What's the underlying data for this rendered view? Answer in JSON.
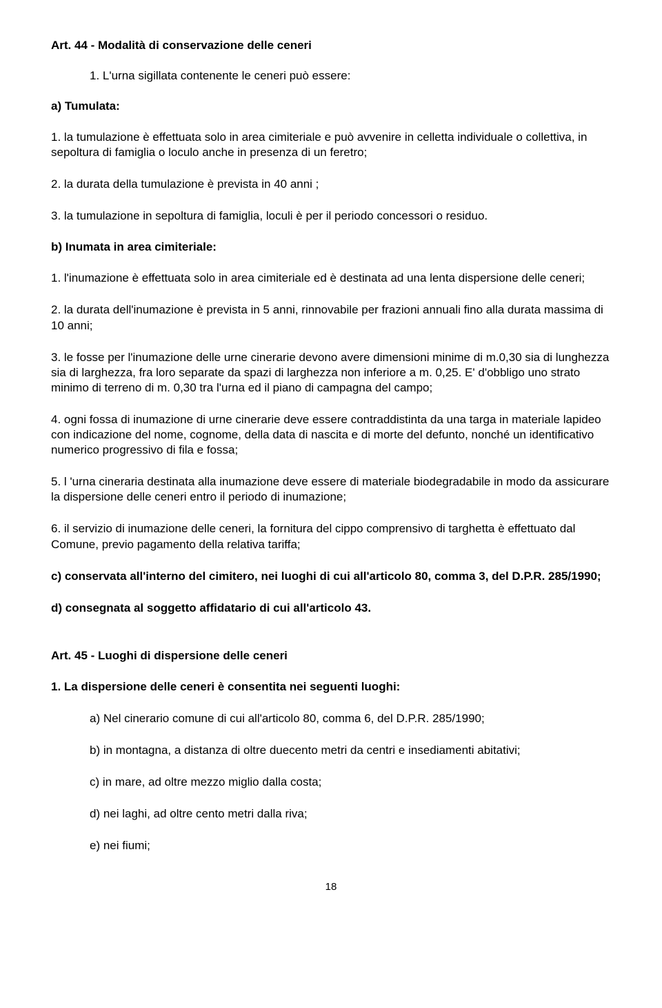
{
  "art44": {
    "title": "Art. 44 - Modalità di conservazione delle ceneri",
    "intro": "1. L'urna sigillata contenente le ceneri può essere:",
    "a_label": "a) Tumulata:",
    "a_items": [
      "1. la tumulazione è effettuata solo in area cimiteriale e può avvenire in celletta individuale o collettiva, in sepoltura di famiglia o loculo anche in presenza di un feretro;",
      "2. la durata della tumulazione è prevista in 40 anni ;",
      "3. la tumulazione in sepoltura di famiglia, loculi è per il periodo concessori o residuo."
    ],
    "b_label": "b) Inumata in area cimiteriale:",
    "b_items": [
      "1. l'inumazione è effettuata solo in area cimiteriale ed è destinata ad una lenta dispersione delle ceneri;",
      "2. la durata dell'inumazione è prevista in 5 anni, rinnovabile per frazioni annuali fino alla durata massima di 10 anni;",
      "3. le fosse per l'inumazione delle urne cinerarie devono avere dimensioni minime di m.0,30 sia di lunghezza sia di larghezza, fra loro separate da spazi di larghezza non inferiore a m. 0,25. E' d'obbligo uno strato minimo di terreno di m. 0,30 tra l'urna ed il piano di campagna del campo;",
      "4. ogni fossa di inumazione di urne cinerarie deve essere contraddistinta da una targa in materiale lapideo con indicazione del nome, cognome, della data di nascita e di morte del defunto, nonché un identificativo numerico progressivo di fila e fossa;",
      "5. l 'urna cineraria destinata alla inumazione deve essere di materiale biodegradabile in modo da assicurare la dispersione delle ceneri entro il periodo di inumazione;",
      "6. il servizio di inumazione delle ceneri, la fornitura del cippo comprensivo di targhetta è effettuato dal Comune, previo pagamento della relativa tariffa;"
    ],
    "c_text": "c) conservata all'interno del cimitero, nei luoghi di cui all'articolo 80, comma 3, del D.P.R. 285/1990;",
    "d_text": "d) consegnata al soggetto affidatario di cui all'articolo 43."
  },
  "art45": {
    "title": "Art. 45 - Luoghi di dispersione delle ceneri",
    "intro": "1. La dispersione delle ceneri è consentita nei seguenti luoghi:",
    "items": [
      "a) Nel cinerario comune di cui all'articolo 80, comma 6, del D.P.R. 285/1990;",
      "b) in montagna, a distanza di oltre duecento metri da centri e insediamenti abitativi;",
      "c) in mare, ad oltre mezzo miglio dalla costa;",
      "d) nei laghi, ad oltre cento metri dalla riva;",
      "e) nei fiumi;"
    ]
  },
  "page_number": "18"
}
